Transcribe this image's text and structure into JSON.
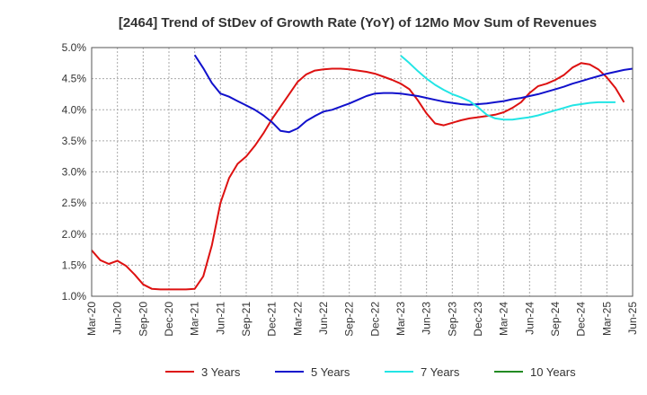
{
  "chart_data": {
    "type": "line",
    "title": "[2464]  Trend of StDev of Growth Rate (YoY) of 12Mo Mov Sum of Revenues",
    "xlabel": "",
    "ylabel": "",
    "ylim": [
      1.0,
      5.0
    ],
    "grid": true,
    "legend_position": "bottom",
    "x_ticks": [
      "Mar-20",
      "Jun-20",
      "Sep-20",
      "Dec-20",
      "Mar-21",
      "Jun-21",
      "Sep-21",
      "Dec-21",
      "Mar-22",
      "Jun-22",
      "Sep-22",
      "Dec-22",
      "Mar-23",
      "Jun-23",
      "Sep-23",
      "Dec-23",
      "Mar-24",
      "Jun-24",
      "Sep-24",
      "Dec-24",
      "Mar-25",
      "Jun-25"
    ],
    "y_ticks": [
      "1.0%",
      "1.5%",
      "2.0%",
      "2.5%",
      "3.0%",
      "3.5%",
      "4.0%",
      "4.5%",
      "5.0%"
    ],
    "x_start_label": "Mar-20",
    "months_total": 63,
    "series": [
      {
        "name": "3 Years",
        "color": "#dd1111",
        "start_month": 0,
        "values": [
          1.74,
          1.58,
          1.52,
          1.57,
          1.49,
          1.35,
          1.19,
          1.12,
          1.11,
          1.11,
          1.11,
          1.11,
          1.12,
          1.32,
          1.82,
          2.5,
          2.9,
          3.13,
          3.25,
          3.42,
          3.62,
          3.85,
          4.05,
          4.25,
          4.45,
          4.57,
          4.63,
          4.65,
          4.66,
          4.66,
          4.65,
          4.63,
          4.61,
          4.58,
          4.53,
          4.48,
          4.42,
          4.33,
          4.15,
          3.94,
          3.78,
          3.75,
          3.79,
          3.83,
          3.86,
          3.88,
          3.9,
          3.92,
          3.96,
          4.03,
          4.12,
          4.27,
          4.38,
          4.42,
          4.48,
          4.56,
          4.68,
          4.75,
          4.73,
          4.65,
          4.52,
          4.35,
          4.12
        ]
      },
      {
        "name": "5 Years",
        "color": "#1111cc",
        "start_month": 12,
        "values": [
          4.88,
          4.67,
          4.43,
          4.26,
          4.21,
          4.14,
          4.07,
          4.0,
          3.91,
          3.8,
          3.66,
          3.64,
          3.7,
          3.82,
          3.9,
          3.97,
          4.0,
          4.05,
          4.1,
          4.16,
          4.22,
          4.26,
          4.27,
          4.27,
          4.26,
          4.24,
          4.22,
          4.19,
          4.16,
          4.13,
          4.11,
          4.09,
          4.08,
          4.09,
          4.1,
          4.12,
          4.14,
          4.17,
          4.19,
          4.22,
          4.25,
          4.29,
          4.33,
          4.37,
          4.42,
          4.46,
          4.5,
          4.54,
          4.58,
          4.61,
          4.64,
          4.66
        ]
      },
      {
        "name": "7 Years",
        "color": "#22e5e5",
        "start_month": 36,
        "values": [
          4.87,
          4.75,
          4.62,
          4.5,
          4.4,
          4.32,
          4.25,
          4.2,
          4.14,
          4.04,
          3.92,
          3.86,
          3.84,
          3.84,
          3.86,
          3.88,
          3.91,
          3.95,
          3.99,
          4.03,
          4.07,
          4.09,
          4.11,
          4.12,
          4.12,
          4.12
        ]
      },
      {
        "name": "10 Years",
        "color": "#228b22",
        "start_month": 0,
        "values": []
      }
    ]
  }
}
